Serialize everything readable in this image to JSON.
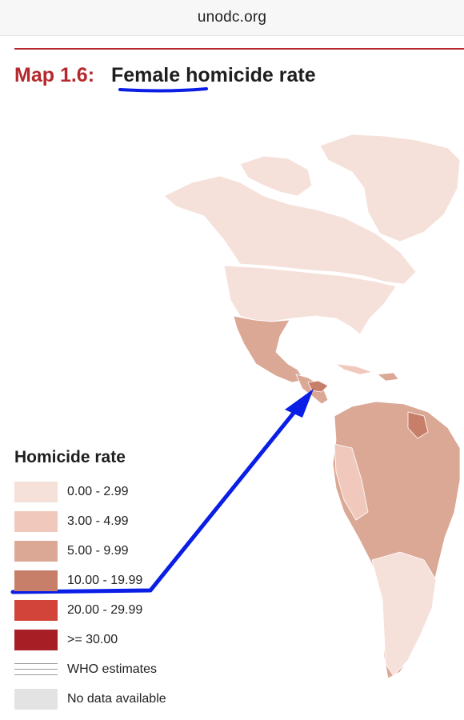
{
  "browser": {
    "url": "unodc.org"
  },
  "header": {
    "map_number": "Map 1.6:",
    "map_title": "Female homicide rate"
  },
  "legend": {
    "title": "Homicide rate",
    "classes": [
      {
        "label": "0.00 - 2.99",
        "color": "#f6e1da"
      },
      {
        "label": "3.00 - 4.99",
        "color": "#f0c9bc"
      },
      {
        "label": "5.00 - 9.99",
        "color": "#dba896"
      },
      {
        "label": "10.00 - 19.99",
        "color": "#c87f69"
      },
      {
        "label": "20.00 - 29.99",
        "color": "#d2433a"
      },
      {
        "label": ">= 30.00",
        "color": "#a71e25"
      }
    ],
    "who_label": "WHO estimates",
    "no_data_label": "No data available",
    "no_data_color": "#e3e3e3"
  },
  "annotation": {
    "color": "#0a1ee6",
    "underlined_word": "Female",
    "arrow_target": "Honduras"
  }
}
